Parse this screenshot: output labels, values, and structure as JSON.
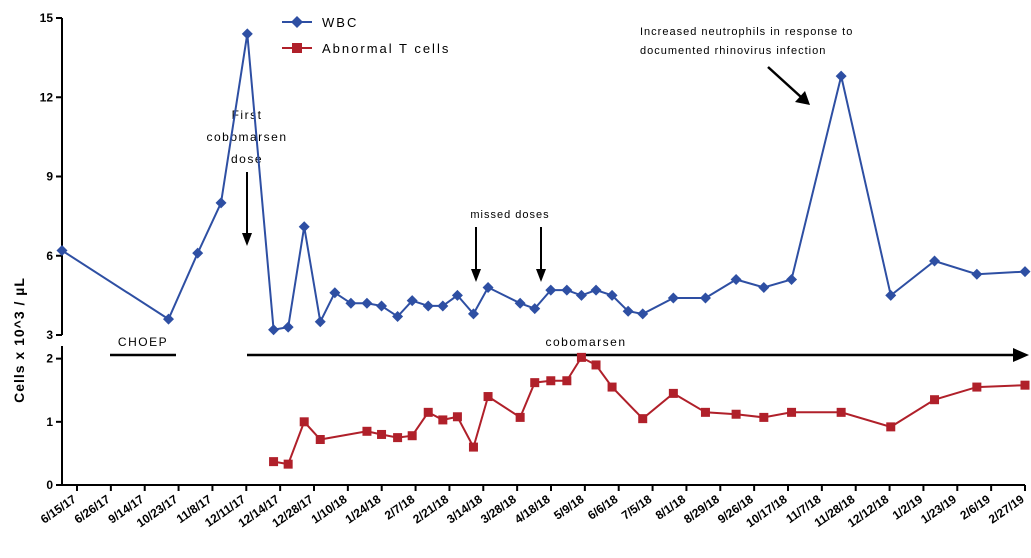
{
  "chart_data": {
    "type": "line",
    "ylabel": "Cells x 10^3 / µL",
    "y_axis_segments": {
      "upper": {
        "ylim": [
          3,
          15
        ],
        "ticks": [
          "3",
          "6",
          "9",
          "12",
          "15"
        ]
      },
      "lower": {
        "ylim": [
          0,
          2.2
        ],
        "ticks": [
          "0",
          "1",
          "2"
        ]
      }
    },
    "x_tick_labels": [
      "6/15/17",
      "6/26/17",
      "9/14/17",
      "10/23/17",
      "11/8/17",
      "12/11/17",
      "12/14/17",
      "12/28/17",
      "1/10/18",
      "1/24/18",
      "2/7/18",
      "2/21/18",
      "3/14/18",
      "3/28/18",
      "4/18/18",
      "5/9/18",
      "6/6/18",
      "7/5/18",
      "8/1/18",
      "8/29/18",
      "9/26/18",
      "10/17/18",
      "11/7/18",
      "11/28/18",
      "12/12/18",
      "1/2/19",
      "1/23/19",
      "2/6/19",
      "2/27/19"
    ],
    "legend": {
      "placement": "top-left"
    },
    "series": [
      {
        "name": "WBC",
        "color": "#2e4fa3",
        "marker": "diamond",
        "points": [
          [
            "2017-06-15",
            6.2
          ],
          [
            "2017-08-27",
            3.6
          ],
          [
            "2017-09-16",
            6.1
          ],
          [
            "2017-10-02",
            8.0
          ],
          [
            "2017-10-20",
            14.4
          ],
          [
            "2017-11-07",
            3.2
          ],
          [
            "2017-11-17",
            3.3
          ],
          [
            "2017-11-28",
            7.1
          ],
          [
            "2017-12-09",
            3.5
          ],
          [
            "2017-12-19",
            4.6
          ],
          [
            "2017-12-30",
            4.2
          ],
          [
            "2018-01-10",
            4.2
          ],
          [
            "2018-01-20",
            4.1
          ],
          [
            "2018-01-31",
            3.7
          ],
          [
            "2018-02-10",
            4.3
          ],
          [
            "2018-02-21",
            4.1
          ],
          [
            "2018-03-03",
            4.1
          ],
          [
            "2018-03-13",
            4.5
          ],
          [
            "2018-03-24",
            3.8
          ],
          [
            "2018-04-03",
            4.8
          ],
          [
            "2018-04-25",
            4.2
          ],
          [
            "2018-05-05",
            4.0
          ],
          [
            "2018-05-16",
            4.7
          ],
          [
            "2018-05-27",
            4.7
          ],
          [
            "2018-06-06",
            4.5
          ],
          [
            "2018-06-16",
            4.7
          ],
          [
            "2018-06-27",
            4.5
          ],
          [
            "2018-07-08",
            3.9
          ],
          [
            "2018-07-18",
            3.8
          ],
          [
            "2018-08-08",
            4.4
          ],
          [
            "2018-08-30",
            4.4
          ],
          [
            "2018-09-20",
            5.1
          ],
          [
            "2018-10-09",
            4.8
          ],
          [
            "2018-10-28",
            5.1
          ],
          [
            "2018-12-01",
            12.8
          ],
          [
            "2019-01-04",
            4.5
          ],
          [
            "2019-02-03",
            5.8
          ],
          [
            "2019-03-04",
            5.3
          ],
          [
            "2019-04-06",
            5.4
          ]
        ]
      },
      {
        "name": "Abnormal T cells",
        "color": "#b0202a",
        "marker": "square",
        "points": [
          [
            "2017-11-07",
            0.37
          ],
          [
            "2017-11-17",
            0.33
          ],
          [
            "2017-11-28",
            1.0
          ],
          [
            "2017-12-09",
            0.72
          ],
          [
            "2018-01-10",
            0.85
          ],
          [
            "2018-01-20",
            0.8
          ],
          [
            "2018-01-31",
            0.75
          ],
          [
            "2018-02-10",
            0.78
          ],
          [
            "2018-02-21",
            1.15
          ],
          [
            "2018-03-03",
            1.03
          ],
          [
            "2018-03-13",
            1.08
          ],
          [
            "2018-03-24",
            0.6
          ],
          [
            "2018-04-03",
            1.4
          ],
          [
            "2018-04-25",
            1.07
          ],
          [
            "2018-05-05",
            1.62
          ],
          [
            "2018-05-16",
            1.65
          ],
          [
            "2018-05-27",
            1.65
          ],
          [
            "2018-06-06",
            2.02
          ],
          [
            "2018-06-16",
            1.9
          ],
          [
            "2018-06-27",
            1.55
          ],
          [
            "2018-07-18",
            1.05
          ],
          [
            "2018-08-08",
            1.45
          ],
          [
            "2018-08-30",
            1.15
          ],
          [
            "2018-09-20",
            1.12
          ],
          [
            "2018-10-09",
            1.07
          ],
          [
            "2018-10-28",
            1.15
          ],
          [
            "2018-12-01",
            1.15
          ],
          [
            "2019-01-04",
            0.92
          ],
          [
            "2019-02-03",
            1.35
          ],
          [
            "2019-03-04",
            1.55
          ],
          [
            "2019-04-06",
            1.58
          ]
        ]
      }
    ],
    "annotations": {
      "first_dose": [
        "First",
        "cobomarsen",
        "dose"
      ],
      "missed_doses": "missed doses",
      "neutrophils": [
        "Increased neutrophils in response to",
        "documented rhinovirus infection"
      ],
      "choep": "CHOEP",
      "cobomarsen": "cobomarsen"
    }
  }
}
